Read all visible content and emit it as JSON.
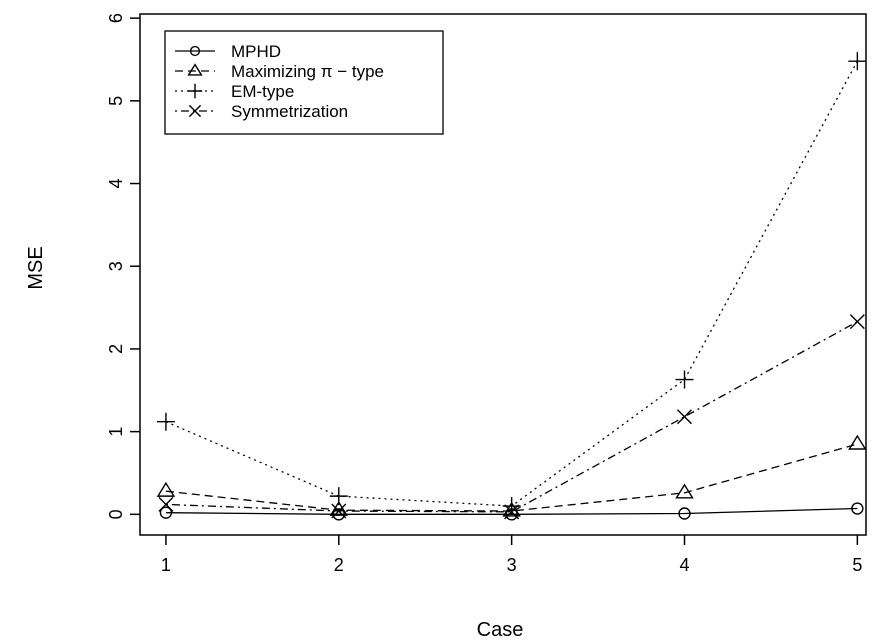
{
  "chart_data": {
    "type": "line",
    "xlabel": "Case",
    "ylabel": "MSE",
    "x": [
      1,
      2,
      3,
      4,
      5
    ],
    "xlim": [
      0.85,
      5.05
    ],
    "ylim": [
      -0.25,
      6.05
    ],
    "xticks": [
      "1",
      "2",
      "3",
      "4",
      "5"
    ],
    "yticks": [
      "0",
      "1",
      "2",
      "3",
      "4",
      "5",
      "6"
    ],
    "grid": false,
    "legend_position": "top-left",
    "series": [
      {
        "name": "MPHD",
        "marker": "circle",
        "dash": "solid",
        "values": [
          0.02,
          0.0,
          0.0,
          0.01,
          0.07
        ]
      },
      {
        "name": "Maximizing π − type",
        "marker": "triangle",
        "dash": "dashed",
        "values": [
          0.28,
          0.05,
          0.04,
          0.26,
          0.85
        ]
      },
      {
        "name": "EM-type",
        "marker": "plus",
        "dash": "dotted",
        "values": [
          1.12,
          0.22,
          0.1,
          1.63,
          5.48
        ]
      },
      {
        "name": "Symmetrization",
        "marker": "cross",
        "dash": "dotdash",
        "values": [
          0.12,
          0.04,
          0.03,
          1.18,
          2.33
        ]
      }
    ]
  }
}
